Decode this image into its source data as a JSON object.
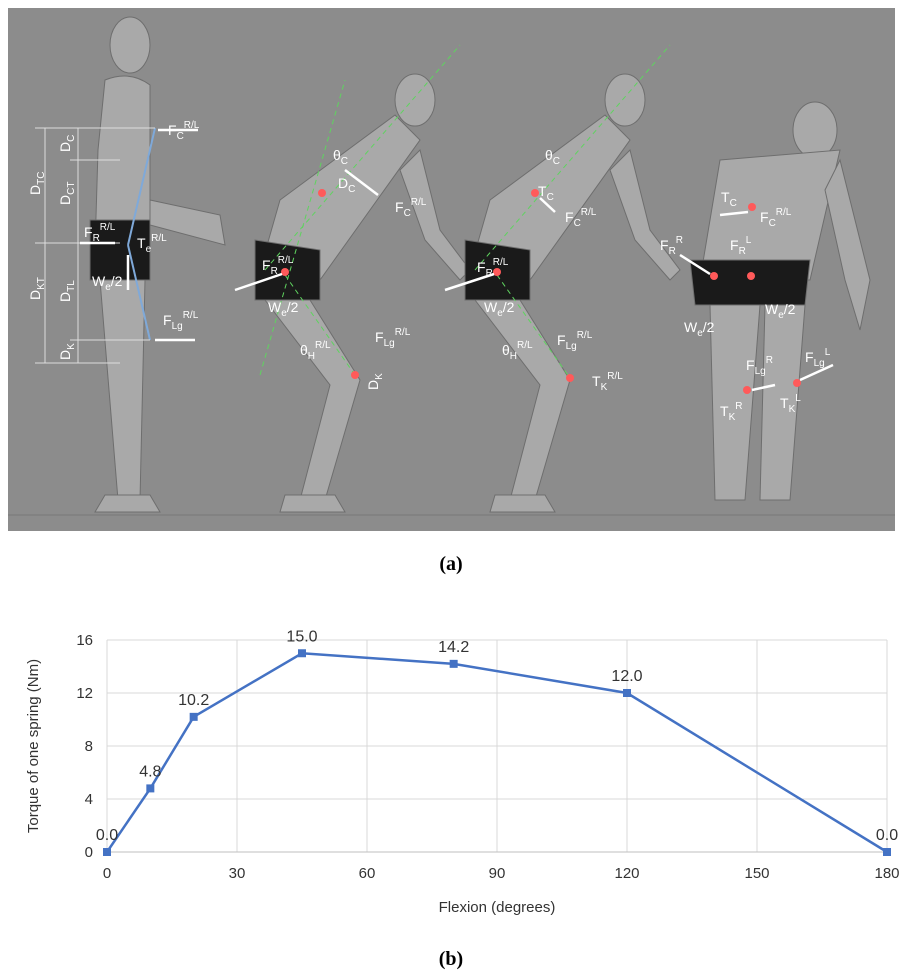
{
  "chart_data": {
    "type": "line",
    "x": [
      0,
      10,
      20,
      45,
      80,
      120,
      180
    ],
    "series": [
      {
        "color": "#4472c4",
        "values": [
          0,
          4.8,
          10.2,
          15,
          14.2,
          12,
          0
        ],
        "value_labels": [
          "0.0",
          "4.8",
          "10.2",
          "15.0",
          "14.2",
          "12.0",
          "0.0"
        ]
      }
    ],
    "xlabel": "Flexion (degrees)",
    "ylabel": "Torque of one spring (Nm)",
    "xlim": [
      0,
      180
    ],
    "xticks": [
      0,
      30,
      60,
      90,
      120,
      150,
      180
    ],
    "ylim": [
      0,
      16
    ],
    "yticks": [
      0,
      4,
      8,
      12,
      16
    ],
    "grid": true,
    "marker": "square"
  },
  "figure": {
    "panel_a_label": "(a)",
    "panel_b_label": "(b)",
    "annotations": [
      {
        "base": "D",
        "sub": "TC"
      },
      {
        "base": "D",
        "sub": "C"
      },
      {
        "base": "D",
        "sub": "CT"
      },
      {
        "base": "D",
        "sub": "KT"
      },
      {
        "base": "D",
        "sub": "TL"
      },
      {
        "base": "D",
        "sub": "K"
      },
      {
        "base": "F",
        "sub": "C",
        "sup": "R/L"
      },
      {
        "base": "F",
        "sub": "R",
        "sup": "R/L"
      },
      {
        "base": "T",
        "sub": "e",
        "sup": "R/L"
      },
      {
        "base": "W",
        "sub": "e",
        "tail": "/2"
      },
      {
        "base": "F",
        "sub": "Lg",
        "sup": "R/L"
      },
      {
        "base": "θ",
        "sub": "C"
      },
      {
        "base": "D",
        "sub": "C"
      },
      {
        "base": "F",
        "sub": "C",
        "sup": "R/L"
      },
      {
        "base": "F",
        "sub": "R",
        "sup": "R/L"
      },
      {
        "base": "W",
        "sub": "e",
        "tail": "/2"
      },
      {
        "base": "θ",
        "sub": "H",
        "sup": "R/L"
      },
      {
        "base": "F",
        "sub": "Lg",
        "sup": "R/L"
      },
      {
        "base": "D",
        "sub": "K"
      },
      {
        "base": "θ",
        "sub": "C"
      },
      {
        "base": "T",
        "sub": "C"
      },
      {
        "base": "F",
        "sub": "C",
        "sup": "R/L"
      },
      {
        "base": "F",
        "sub": "R",
        "sup": "R/L"
      },
      {
        "base": "W",
        "sub": "e",
        "tail": "/2"
      },
      {
        "base": "θ",
        "sub": "H",
        "sup": "R/L"
      },
      {
        "base": "F",
        "sub": "Lg",
        "sup": "R/L"
      },
      {
        "base": "T",
        "sub": "K",
        "sup": "R/L"
      },
      {
        "base": "T",
        "sub": "C"
      },
      {
        "base": "F",
        "sub": "C",
        "sup": "R/L"
      },
      {
        "base": "F",
        "sub": "R",
        "sup": "R"
      },
      {
        "base": "F",
        "sub": "R",
        "sup": "L"
      },
      {
        "base": "W",
        "sub": "e",
        "tail": "/2"
      },
      {
        "base": "W",
        "sub": "e",
        "tail": "/2"
      },
      {
        "base": "F",
        "sub": "Lg",
        "sup": "R"
      },
      {
        "base": "F",
        "sub": "Lg",
        "sup": "L"
      },
      {
        "base": "T",
        "sub": "K",
        "sup": "R"
      },
      {
        "base": "T",
        "sub": "K",
        "sup": "L"
      }
    ]
  }
}
